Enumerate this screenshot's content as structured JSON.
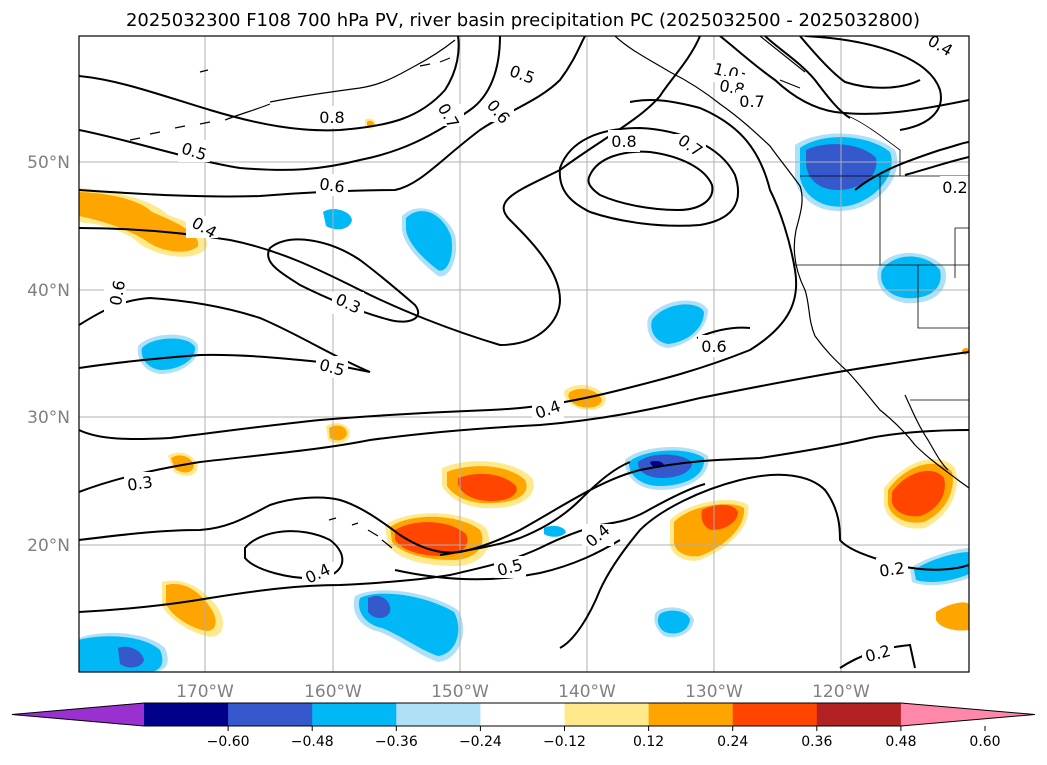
{
  "title": "2025032300 F108 700 hPa PV, river basin precipitation PC (2025032500 - 2025032800)",
  "lon_ticks": [
    "170°W",
    "160°W",
    "150°W",
    "140°W",
    "130°W",
    "120°W"
  ],
  "lat_ticks": [
    "50°N",
    "40°N",
    "30°N",
    "20°N"
  ],
  "colorbar": {
    "ticks": [
      "−0.60",
      "−0.48",
      "−0.36",
      "−0.24",
      "−0.12",
      "0.12",
      "0.24",
      "0.36",
      "0.48",
      "0.60"
    ],
    "colors": [
      "#9b30d0",
      "#00008b",
      "#3558cc",
      "#00b8f5",
      "#aee0f8",
      "#ffffff",
      "#ffe98a",
      "#ffa500",
      "#ff4500",
      "#b22222",
      "#ff88aa"
    ]
  },
  "contour_labels": [
    {
      "text": "0.5",
      "id": "c05a"
    },
    {
      "text": "0.6",
      "id": "c06a"
    },
    {
      "text": "0.7",
      "id": "c07a"
    },
    {
      "text": "0.8",
      "id": "c08a"
    },
    {
      "text": "0.5",
      "id": "c05b"
    },
    {
      "text": "0.6",
      "id": "c06b"
    },
    {
      "text": "0.4",
      "id": "c04a"
    },
    {
      "text": "0.6",
      "id": "c06c"
    },
    {
      "text": "0.3",
      "id": "c03a"
    },
    {
      "text": "0.5",
      "id": "c05c"
    },
    {
      "text": "0.4",
      "id": "c04b"
    },
    {
      "text": "0.3",
      "id": "c03b"
    },
    {
      "text": "0.4",
      "id": "c04c"
    },
    {
      "text": "0.5",
      "id": "c05d"
    },
    {
      "text": "0.4",
      "id": "c04d"
    },
    {
      "text": "0.8",
      "id": "c08b"
    },
    {
      "text": "0.7",
      "id": "c07b"
    },
    {
      "text": "0.6",
      "id": "c06d"
    },
    {
      "text": "1.0",
      "id": "c10a"
    },
    {
      "text": "0.8",
      "id": "c08c"
    },
    {
      "text": "0.7",
      "id": "c07c"
    },
    {
      "text": "0.2",
      "id": "c02a"
    },
    {
      "text": "0.2",
      "id": "c02b"
    },
    {
      "text": "0.2",
      "id": "c02c"
    },
    {
      "text": "0.4",
      "id": "c04e"
    }
  ]
}
